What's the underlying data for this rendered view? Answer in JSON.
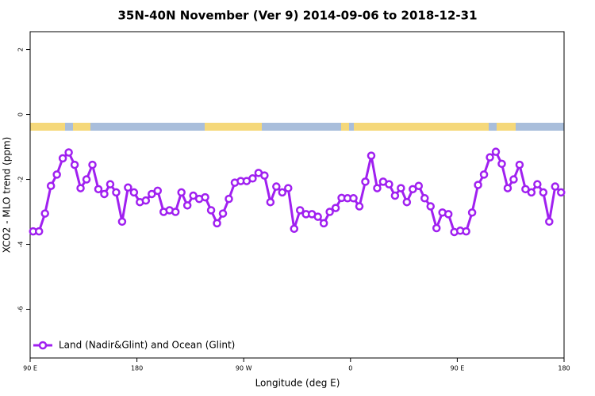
{
  "chart_data": {
    "type": "line",
    "title": "35N-40N November (Ver 9)   2014-09-06 to 2018-12-31",
    "x_label": "Longitude (deg E)",
    "y_label": "XCO2 - MLO trend (ppm)",
    "xlim": [
      90,
      540
    ],
    "xticks": [
      {
        "value": 90,
        "label": "90 E"
      },
      {
        "value": 180,
        "label": "180"
      },
      {
        "value": 270,
        "label": "90 W"
      },
      {
        "value": 360,
        "label": "0"
      },
      {
        "value": 450,
        "label": "90 E"
      },
      {
        "value": 540,
        "label": "180"
      }
    ],
    "ylim": [
      -7.5,
      2.55
    ],
    "yticks": [
      2,
      0,
      -2,
      -4,
      -6
    ],
    "legend": "bottom-left",
    "x": [
      92.5,
      97.5,
      102.5,
      107.5,
      112.5,
      117.5,
      122.5,
      127.5,
      132.5,
      137.5,
      142.5,
      147.5,
      152.5,
      157.5,
      162.5,
      167.5,
      172.5,
      177.5,
      182.5,
      187.5,
      192.5,
      197.5,
      202.5,
      207.5,
      212.5,
      217.5,
      222.5,
      227.5,
      232.5,
      237.5,
      242.5,
      247.5,
      252.5,
      257.5,
      262.5,
      267.5,
      272.5,
      277.5,
      282.5,
      287.5,
      292.5,
      297.5,
      302.5,
      307.5,
      312.5,
      317.5,
      322.5,
      327.5,
      332.5,
      337.5,
      342.5,
      347.5,
      352.5,
      357.5,
      362.5,
      367.5,
      372.5,
      377.5,
      382.5,
      387.5,
      392.5,
      397.5,
      402.5,
      407.5,
      412.5,
      417.5,
      422.5,
      427.5,
      432.5,
      437.5,
      442.5,
      447.5,
      452.5,
      457.5,
      462.5,
      467.5,
      472.5,
      477.5,
      482.5,
      487.5,
      492.5,
      497.5,
      502.5,
      507.5,
      512.5,
      517.5,
      522.5,
      527.5,
      532.5,
      537.5
    ],
    "series": [
      {
        "name": "Land (Nadir&Glint) and Ocean (Glint)",
        "color": "#a020f0",
        "values": [
          -3.6,
          -3.6,
          -3.05,
          -2.2,
          -1.85,
          -1.35,
          -1.17,
          -1.55,
          -2.27,
          -2.0,
          -1.55,
          -2.3,
          -2.45,
          -2.15,
          -2.4,
          -3.3,
          -2.25,
          -2.4,
          -2.7,
          -2.65,
          -2.45,
          -2.35,
          -3.0,
          -2.95,
          -3.0,
          -2.4,
          -2.8,
          -2.5,
          -2.6,
          -2.55,
          -2.95,
          -3.35,
          -3.05,
          -2.6,
          -2.1,
          -2.05,
          -2.05,
          -1.97,
          -1.8,
          -1.88,
          -2.7,
          -2.22,
          -2.4,
          -2.27,
          -3.52,
          -2.95,
          -3.07,
          -3.07,
          -3.15,
          -3.35,
          -3.0,
          -2.88,
          -2.57,
          -2.58,
          -2.58,
          -2.83,
          -2.07,
          -1.27,
          -2.27,
          -2.07,
          -2.15,
          -2.5,
          -2.27,
          -2.7,
          -2.3,
          -2.2,
          -2.58,
          -2.83,
          -3.5,
          -3.02,
          -3.07,
          -3.62,
          -3.58,
          -3.6,
          -3.02,
          -2.17,
          -1.85,
          -1.32,
          -1.15,
          -1.52,
          -2.27,
          -2.0,
          -1.55,
          -2.3,
          -2.4,
          -2.15,
          -2.4,
          -3.3,
          -2.22,
          -2.4
        ]
      }
    ]
  }
}
